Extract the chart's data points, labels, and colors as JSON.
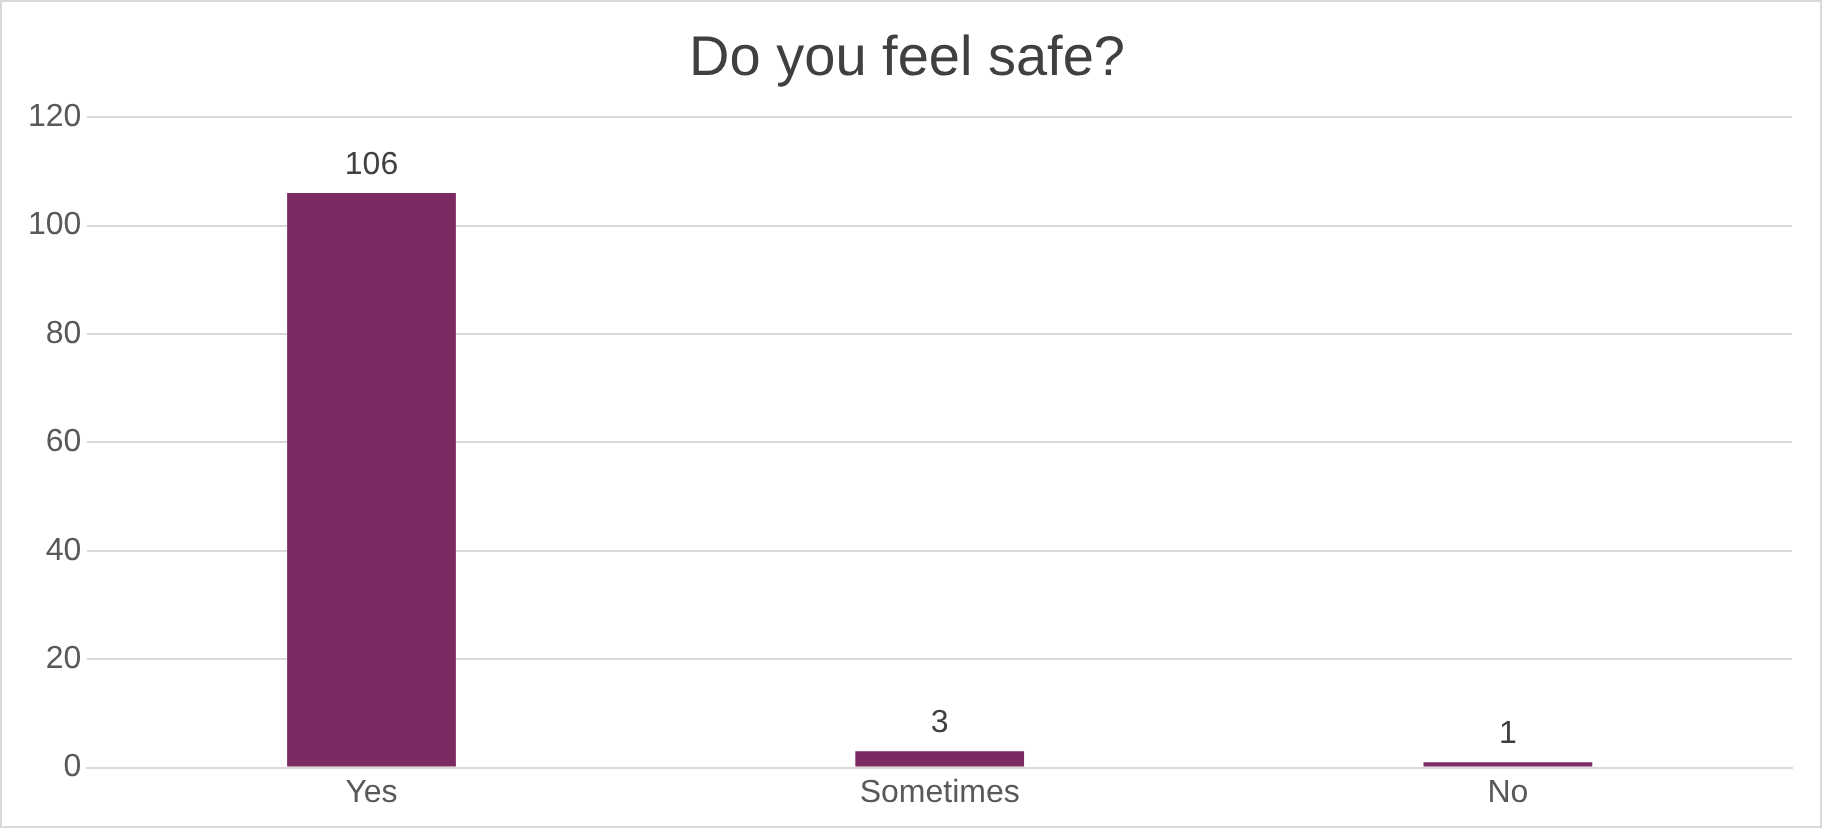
{
  "chart_data": {
    "type": "bar",
    "title": "Do you feel safe?",
    "categories": [
      "Yes",
      "Sometimes",
      "No"
    ],
    "values": [
      106,
      3,
      1
    ],
    "color": "#7b2a62",
    "ylim": [
      0,
      120
    ],
    "yticks": [
      0,
      20,
      40,
      60,
      80,
      100,
      120
    ],
    "grid": "y",
    "data_labels": true,
    "legend": false
  }
}
